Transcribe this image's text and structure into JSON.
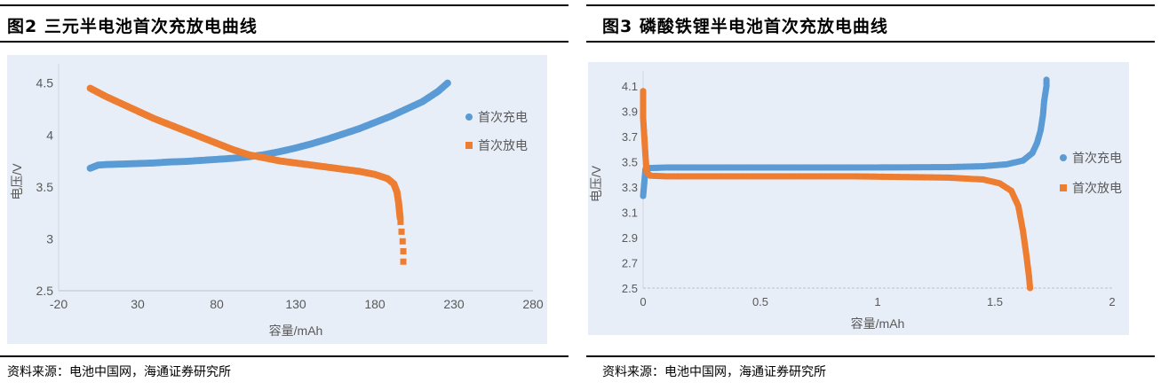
{
  "figures": [
    {
      "title": "图2  三元半电池首次充放电曲线",
      "source": "资料来源：电池中国网，海通证券研究所"
    },
    {
      "title": "图3  磷酸铁锂半电池首次充放电曲线",
      "source": "资料来源：电池中国网，海通证券研究所"
    }
  ],
  "chart_data": [
    {
      "type": "scatter",
      "title": "",
      "xlabel": "容量/mAh",
      "ylabel": "电压/V",
      "xlim": [
        -20,
        280
      ],
      "ylim": [
        2.5,
        4.6
      ],
      "xticks": [
        "-20",
        "30",
        "80",
        "130",
        "180",
        "230",
        "280"
      ],
      "yticks": [
        "2.5",
        "3",
        "3.5",
        "4",
        "4.5"
      ],
      "legend_position": "right",
      "grid": false,
      "series": [
        {
          "name": "首次充电",
          "color": "#5b9bd5",
          "points": [
            [
              0,
              3.68
            ],
            [
              5,
              3.71
            ],
            [
              10,
              3.715
            ],
            [
              20,
              3.72
            ],
            [
              30,
              3.725
            ],
            [
              40,
              3.73
            ],
            [
              50,
              3.74
            ],
            [
              60,
              3.745
            ],
            [
              70,
              3.755
            ],
            [
              80,
              3.765
            ],
            [
              90,
              3.775
            ],
            [
              100,
              3.79
            ],
            [
              110,
              3.81
            ],
            [
              120,
              3.84
            ],
            [
              130,
              3.875
            ],
            [
              140,
              3.915
            ],
            [
              150,
              3.96
            ],
            [
              160,
              4.01
            ],
            [
              170,
              4.06
            ],
            [
              180,
              4.12
            ],
            [
              190,
              4.18
            ],
            [
              200,
              4.25
            ],
            [
              210,
              4.32
            ],
            [
              220,
              4.42
            ],
            [
              226,
              4.5
            ]
          ]
        },
        {
          "name": "首次放电",
          "color": "#ed7d31",
          "points": [
            [
              0,
              4.45
            ],
            [
              10,
              4.37
            ],
            [
              20,
              4.3
            ],
            [
              30,
              4.23
            ],
            [
              40,
              4.16
            ],
            [
              50,
              4.1
            ],
            [
              60,
              4.04
            ],
            [
              70,
              3.98
            ],
            [
              80,
              3.92
            ],
            [
              90,
              3.86
            ],
            [
              100,
              3.81
            ],
            [
              110,
              3.78
            ],
            [
              120,
              3.75
            ],
            [
              130,
              3.73
            ],
            [
              140,
              3.71
            ],
            [
              150,
              3.69
            ],
            [
              160,
              3.67
            ],
            [
              170,
              3.65
            ],
            [
              180,
              3.62
            ],
            [
              188,
              3.58
            ],
            [
              192,
              3.53
            ],
            [
              194,
              3.45
            ],
            [
              195,
              3.35
            ],
            [
              196,
              3.2
            ],
            [
              197,
              3.05
            ],
            [
              198,
              2.92
            ],
            [
              198,
              2.78
            ]
          ]
        }
      ]
    },
    {
      "type": "scatter",
      "title": "",
      "xlabel": "容量/mAh",
      "ylabel": "电压/V",
      "xlim": [
        0,
        2
      ],
      "ylim": [
        2.5,
        4.15
      ],
      "xticks": [
        "0",
        "0.5",
        "1",
        "1.5",
        "2"
      ],
      "yticks": [
        "2.5",
        "2.7",
        "2.9",
        "3.1",
        "3.3",
        "3.5",
        "3.7",
        "3.9",
        "4.1"
      ],
      "legend_position": "right",
      "grid": false,
      "series": [
        {
          "name": "首次充电",
          "color": "#5b9bd5",
          "points": [
            [
              0,
              3.23
            ],
            [
              0.01,
              3.44
            ],
            [
              0.02,
              3.45
            ],
            [
              0.1,
              3.455
            ],
            [
              0.3,
              3.455
            ],
            [
              0.5,
              3.455
            ],
            [
              0.7,
              3.455
            ],
            [
              0.9,
              3.455
            ],
            [
              1.1,
              3.456
            ],
            [
              1.3,
              3.458
            ],
            [
              1.45,
              3.465
            ],
            [
              1.55,
              3.48
            ],
            [
              1.62,
              3.51
            ],
            [
              1.66,
              3.57
            ],
            [
              1.68,
              3.65
            ],
            [
              1.695,
              3.75
            ],
            [
              1.705,
              3.87
            ],
            [
              1.71,
              3.98
            ],
            [
              1.72,
              4.1
            ],
            [
              1.72,
              4.15
            ]
          ]
        },
        {
          "name": "首次放电",
          "color": "#ed7d31",
          "points": [
            [
              0,
              4.06
            ],
            [
              0,
              3.95
            ],
            [
              0,
              3.85
            ],
            [
              0.005,
              3.7
            ],
            [
              0.01,
              3.55
            ],
            [
              0.015,
              3.42
            ],
            [
              0.03,
              3.39
            ],
            [
              0.1,
              3.385
            ],
            [
              0.3,
              3.385
            ],
            [
              0.5,
              3.385
            ],
            [
              0.7,
              3.385
            ],
            [
              0.9,
              3.385
            ],
            [
              1.1,
              3.38
            ],
            [
              1.3,
              3.375
            ],
            [
              1.45,
              3.36
            ],
            [
              1.52,
              3.33
            ],
            [
              1.57,
              3.27
            ],
            [
              1.6,
              3.15
            ],
            [
              1.62,
              2.95
            ],
            [
              1.635,
              2.75
            ],
            [
              1.645,
              2.6
            ],
            [
              1.65,
              2.5
            ]
          ]
        }
      ]
    }
  ]
}
